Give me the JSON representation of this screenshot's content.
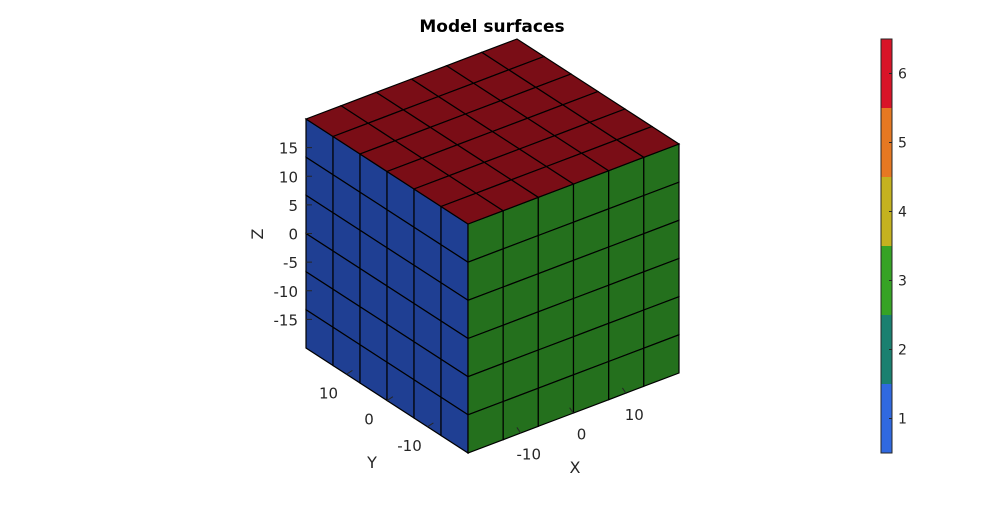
{
  "chart_data": {
    "type": "3d-surface-patches",
    "title": "Model surfaces",
    "xlabel": "X",
    "ylabel": "Y",
    "zlabel": "Z",
    "grid_divisions": 6,
    "x_ticks": [
      "-10",
      "0",
      "10"
    ],
    "y_ticks": [
      "10",
      "0",
      "-10"
    ],
    "z_ticks": [
      "15",
      "10",
      "5",
      "0",
      "-5",
      "-10",
      "-15"
    ],
    "faces": [
      {
        "name": "top",
        "value": 6,
        "color": "#7a0d16"
      },
      {
        "name": "front-left",
        "value": 1,
        "color": "#1f3f93"
      },
      {
        "name": "front-right",
        "value": 3,
        "color": "#24701d"
      }
    ],
    "colorbar": {
      "ticks": [
        "1",
        "2",
        "3",
        "4",
        "5",
        "6"
      ],
      "colors": [
        "#3069e0",
        "#1a8070",
        "#36a325",
        "#c4b21f",
        "#e67822",
        "#d81428"
      ]
    }
  }
}
